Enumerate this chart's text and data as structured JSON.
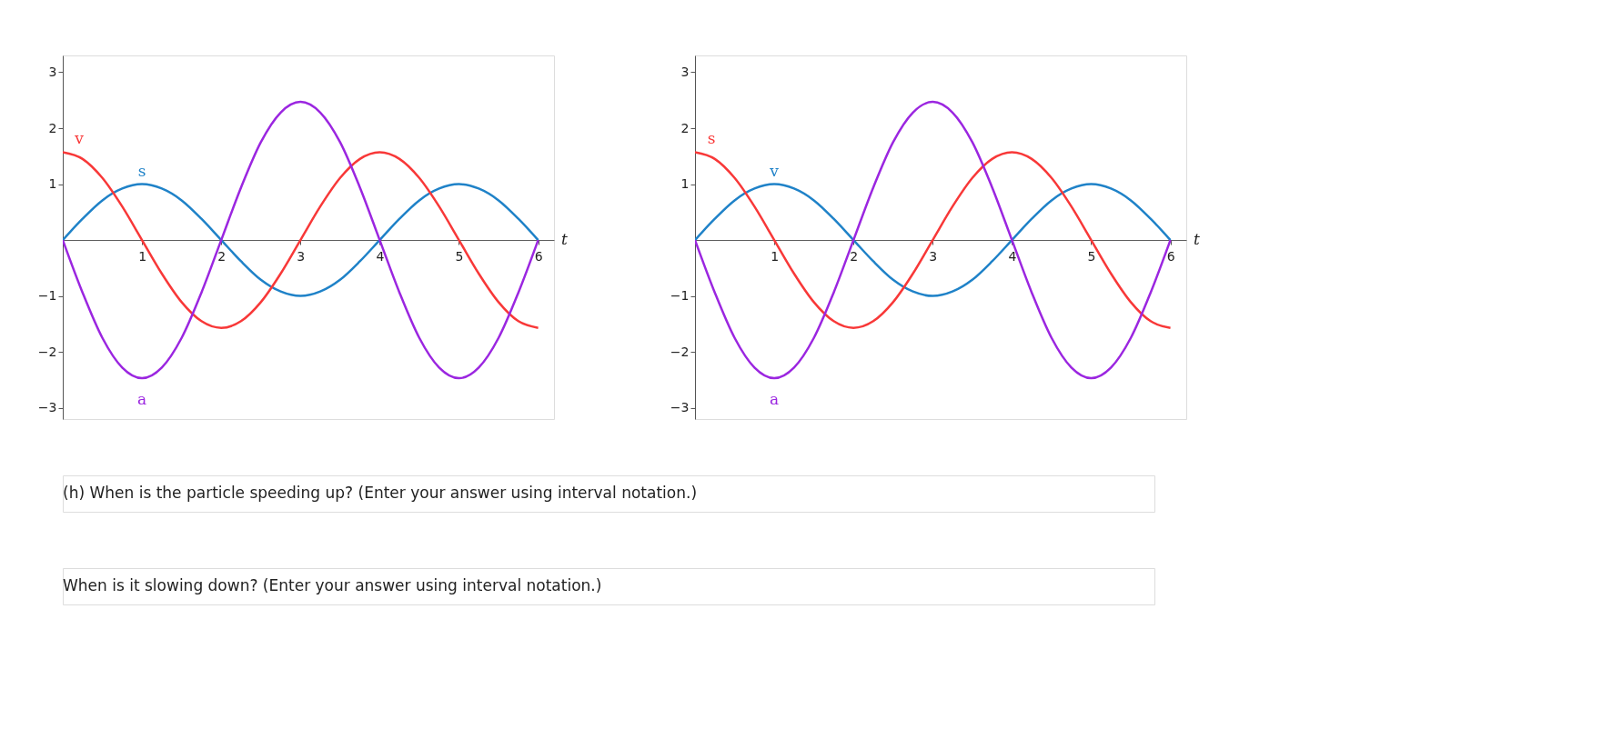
{
  "chart_data": [
    {
      "type": "line",
      "xlabel": "t",
      "x": [
        0,
        0.25,
        0.5,
        0.75,
        1,
        1.25,
        1.5,
        1.75,
        2,
        2.25,
        2.5,
        2.75,
        3,
        3.25,
        3.5,
        3.75,
        4,
        4.25,
        4.5,
        4.75,
        5,
        5.25,
        5.5,
        5.75,
        6
      ],
      "xlim": [
        0,
        6.2
      ],
      "ylim": [
        -3.2,
        3.3
      ],
      "xticks": [
        1,
        2,
        3,
        4,
        5,
        6
      ],
      "yticks": [
        -3,
        -2,
        -1,
        1,
        2,
        3
      ],
      "grid": false,
      "marker": "none",
      "line_style": "solid",
      "series": [
        {
          "name": "s",
          "color": "#1f82c8",
          "values": [
            0,
            0.38,
            0.71,
            0.92,
            1,
            0.92,
            0.71,
            0.38,
            0,
            -0.38,
            -0.71,
            -0.92,
            -1,
            -0.92,
            -0.71,
            -0.38,
            0,
            0.38,
            0.71,
            0.92,
            1,
            0.92,
            0.71,
            0.38,
            0
          ]
        },
        {
          "name": "v",
          "color": "#f83838",
          "values": [
            1.57,
            1.45,
            1.11,
            0.6,
            0,
            -0.6,
            -1.11,
            -1.45,
            -1.57,
            -1.45,
            -1.11,
            -0.6,
            0,
            0.6,
            1.11,
            1.45,
            1.57,
            1.45,
            1.11,
            0.6,
            0,
            -0.6,
            -1.11,
            -1.45,
            -1.57
          ]
        },
        {
          "name": "a",
          "color": "#9b26e0",
          "values": [
            0,
            -0.94,
            -1.75,
            -2.28,
            -2.47,
            -2.28,
            -1.75,
            -0.94,
            0,
            0.94,
            1.75,
            2.28,
            2.47,
            2.28,
            1.75,
            0.94,
            0,
            -0.94,
            -1.75,
            -2.28,
            -2.47,
            -2.28,
            -1.75,
            -0.94,
            0
          ]
        }
      ]
    },
    {
      "type": "line",
      "xlabel": "t",
      "x": [
        0,
        0.25,
        0.5,
        0.75,
        1,
        1.25,
        1.5,
        1.75,
        2,
        2.25,
        2.5,
        2.75,
        3,
        3.25,
        3.5,
        3.75,
        4,
        4.25,
        4.5,
        4.75,
        5,
        5.25,
        5.5,
        5.75,
        6
      ],
      "xlim": [
        0,
        6.2
      ],
      "ylim": [
        -3.2,
        3.3
      ],
      "xticks": [
        1,
        2,
        3,
        4,
        5,
        6
      ],
      "yticks": [
        -3,
        -2,
        -1,
        1,
        2,
        3
      ],
      "grid": false,
      "marker": "none",
      "line_style": "solid",
      "series": [
        {
          "name": "v",
          "color": "#1f82c8",
          "values": [
            0,
            0.38,
            0.71,
            0.92,
            1,
            0.92,
            0.71,
            0.38,
            0,
            -0.38,
            -0.71,
            -0.92,
            -1,
            -0.92,
            -0.71,
            -0.38,
            0,
            0.38,
            0.71,
            0.92,
            1,
            0.92,
            0.71,
            0.38,
            0
          ]
        },
        {
          "name": "s",
          "color": "#f83838",
          "values": [
            1.57,
            1.45,
            1.11,
            0.6,
            0,
            -0.6,
            -1.11,
            -1.45,
            -1.57,
            -1.45,
            -1.11,
            -0.6,
            0,
            0.6,
            1.11,
            1.45,
            1.57,
            1.45,
            1.11,
            0.6,
            0,
            -0.6,
            -1.11,
            -1.45,
            -1.57
          ]
        },
        {
          "name": "a",
          "color": "#9b26e0",
          "values": [
            0,
            -0.94,
            -1.75,
            -2.28,
            -2.47,
            -2.28,
            -1.75,
            -0.94,
            0,
            0.94,
            1.75,
            2.28,
            2.47,
            2.28,
            1.75,
            0.94,
            0,
            -0.94,
            -1.75,
            -2.28,
            -2.47,
            -2.28,
            -1.75,
            -0.94,
            0
          ]
        }
      ],
      "annotations": [
        "(h)  When is the particle speeding up? (Enter your answer using interval notation.)",
        "When is it slowing down? (Enter your answer using interval notation.)"
      ]
    }
  ]
}
